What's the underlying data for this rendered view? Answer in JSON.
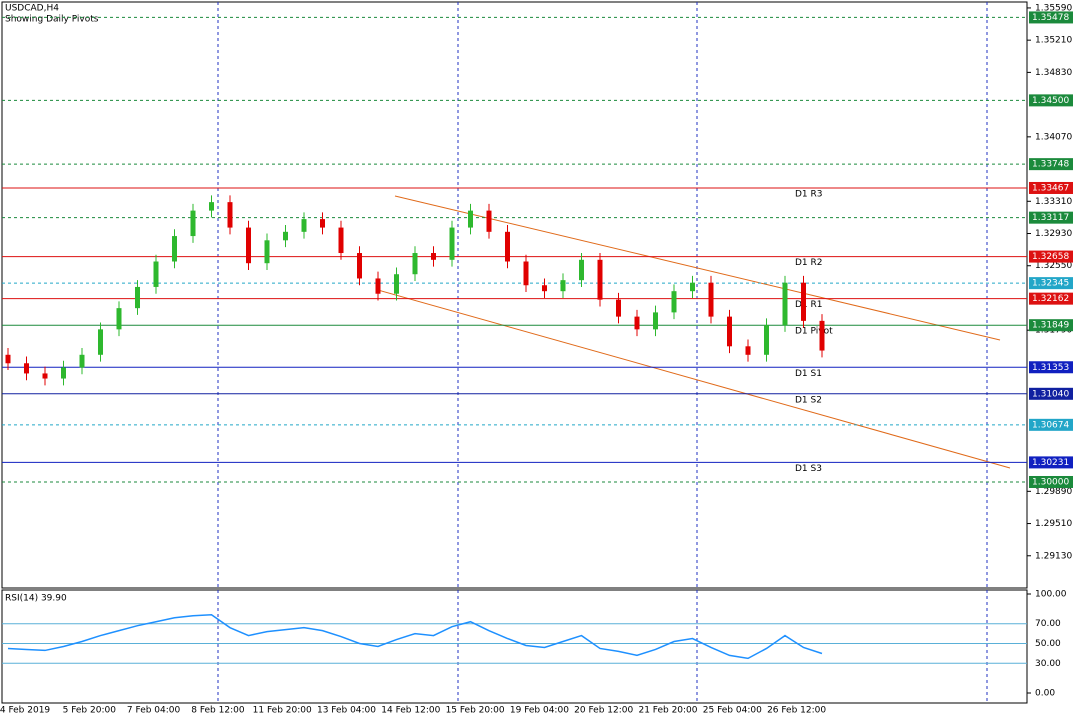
{
  "chart_data": {
    "type": "candlestick",
    "title": "USDCAD,H4",
    "subtitle": "Showing Daily Pivots",
    "up_color": "#2eb82e",
    "down_color": "#e00000",
    "ylim": [
      1.2875,
      1.3566
    ],
    "yticks": [
      {
        "value": 1.3559,
        "label": "1.35590"
      },
      {
        "value": 1.3521,
        "label": "1.35210"
      },
      {
        "value": 1.3483,
        "label": "1.34830"
      },
      {
        "value": 1.3407,
        "label": "1.34070"
      },
      {
        "value": 1.3331,
        "label": "1.33310"
      },
      {
        "value": 1.3293,
        "label": "1.32930"
      },
      {
        "value": 1.3255,
        "label": "1.32550"
      },
      {
        "value": 1.3179,
        "label": "1.31790"
      },
      {
        "value": 1.2989,
        "label": "1.29890"
      },
      {
        "value": 1.2951,
        "label": "1.29510"
      },
      {
        "value": 1.2913,
        "label": "1.29130"
      }
    ],
    "levels": [
      {
        "value": 1.35478,
        "label": "1.35478",
        "color": "#1b8a3c",
        "style": "dashed"
      },
      {
        "value": 1.345,
        "label": "1.34500",
        "color": "#1b8a3c",
        "style": "dashed"
      },
      {
        "value": 1.33748,
        "label": "1.33748",
        "color": "#1b8a3c",
        "style": "dashed"
      },
      {
        "value": 1.33467,
        "label": "1.33467",
        "color": "#dd1111",
        "style": "solid",
        "pivot": "D1 R3"
      },
      {
        "value": 1.33117,
        "label": "1.33117",
        "color": "#1b8a3c",
        "style": "dashed"
      },
      {
        "value": 1.32658,
        "label": "1.32658",
        "color": "#dd1111",
        "style": "solid",
        "pivot": "D1 R2"
      },
      {
        "value": 1.32345,
        "label": "1.32345",
        "color": "#22a6c8",
        "style": "dashed"
      },
      {
        "value": 1.32162,
        "label": "1.32162",
        "color": "#dd1111",
        "style": "solid",
        "pivot": "D1 R1"
      },
      {
        "value": 1.31849,
        "label": "1.31849",
        "color": "#1b8a3c",
        "style": "solid",
        "pivot": "D1 Pivot"
      },
      {
        "value": 1.31353,
        "label": "1.31353",
        "color": "#1020c0",
        "style": "solid",
        "pivot": "D1 S1"
      },
      {
        "value": 1.3104,
        "label": "1.31040",
        "color": "#1020a0",
        "style": "solid",
        "pivot": "D1 S2"
      },
      {
        "value": 1.30674,
        "label": "1.30674",
        "color": "#22a6c8",
        "style": "dashed"
      },
      {
        "value": 1.30231,
        "label": "1.30231",
        "color": "#1020c0",
        "style": "solid",
        "pivot": "D1 S3"
      },
      {
        "value": 1.3,
        "label": "1.30000",
        "color": "#1b8a3c",
        "style": "dashed"
      }
    ],
    "open": [
      1.315,
      1.314,
      1.3128,
      1.3122,
      1.3135,
      1.315,
      1.318,
      1.3205,
      1.323,
      1.326,
      1.329,
      1.332,
      1.333,
      1.33,
      1.3258,
      1.3285,
      1.3295,
      1.331,
      1.33,
      1.327,
      1.324,
      1.3222,
      1.3245,
      1.327,
      1.3262,
      1.33,
      1.332,
      1.3295,
      1.326,
      1.3232,
      1.3225,
      1.3238,
      1.3262,
      1.3215,
      1.3195,
      1.318,
      1.32,
      1.3225,
      1.3235,
      1.3195,
      1.316,
      1.315,
      1.3185,
      1.3235,
      1.319
    ],
    "high": [
      1.3158,
      1.3148,
      1.3136,
      1.3143,
      1.3158,
      1.3188,
      1.3213,
      1.3238,
      1.3268,
      1.3298,
      1.3328,
      1.3338,
      1.3338,
      1.3308,
      1.3293,
      1.3303,
      1.3318,
      1.3318,
      1.3308,
      1.3278,
      1.3248,
      1.3253,
      1.3278,
      1.3278,
      1.3308,
      1.3328,
      1.3328,
      1.3303,
      1.3268,
      1.324,
      1.3246,
      1.327,
      1.327,
      1.3223,
      1.3203,
      1.3208,
      1.3233,
      1.3243,
      1.3243,
      1.3203,
      1.3168,
      1.3193,
      1.3243,
      1.3243,
      1.3198
    ],
    "low": [
      1.3132,
      1.312,
      1.3114,
      1.3114,
      1.3127,
      1.3142,
      1.3172,
      1.3197,
      1.3222,
      1.3252,
      1.3282,
      1.3312,
      1.3292,
      1.325,
      1.325,
      1.3277,
      1.3287,
      1.3292,
      1.3262,
      1.3232,
      1.3214,
      1.3214,
      1.3237,
      1.3254,
      1.3254,
      1.3292,
      1.3287,
      1.3252,
      1.3224,
      1.3217,
      1.3217,
      1.323,
      1.3207,
      1.3187,
      1.3172,
      1.3172,
      1.3192,
      1.3217,
      1.3187,
      1.3152,
      1.3142,
      1.3142,
      1.3177,
      1.3182,
      1.3147
    ],
    "close": [
      1.314,
      1.3128,
      1.3122,
      1.3135,
      1.315,
      1.318,
      1.3205,
      1.323,
      1.326,
      1.329,
      1.332,
      1.333,
      1.33,
      1.3258,
      1.3285,
      1.3295,
      1.331,
      1.33,
      1.327,
      1.324,
      1.3222,
      1.3245,
      1.327,
      1.3262,
      1.33,
      1.332,
      1.3295,
      1.326,
      1.3232,
      1.3225,
      1.3238,
      1.3262,
      1.3215,
      1.3195,
      1.318,
      1.32,
      1.3225,
      1.3235,
      1.3195,
      1.316,
      1.315,
      1.3185,
      1.3235,
      1.319,
      1.3155
    ],
    "dates": [
      "4 Feb 2019",
      "5 Feb 20:00",
      "7 Feb 04:00",
      "8 Feb 12:00",
      "11 Feb 20:00",
      "13 Feb 04:00",
      "14 Feb 12:00",
      "15 Feb 20:00",
      "19 Feb 04:00",
      "20 Feb 12:00",
      "21 Feb 20:00",
      "25 Feb 04:00",
      "26 Feb 12:00"
    ],
    "rsi": {
      "title": "RSI(14) 39.90",
      "color": "#1e90ff",
      "ylim": [
        0,
        100
      ],
      "yticks": [
        {
          "value": 100,
          "label": "100.00"
        },
        {
          "value": 70,
          "label": "70.00"
        },
        {
          "value": 50,
          "label": "50.00"
        },
        {
          "value": 30,
          "label": "30.00"
        },
        {
          "value": 0,
          "label": "0.00"
        }
      ],
      "values": [
        45,
        44,
        43,
        47,
        52,
        58,
        63,
        68,
        72,
        76,
        78,
        79,
        66,
        58,
        62,
        64,
        66,
        63,
        57,
        50,
        47,
        54,
        60,
        58,
        67,
        72,
        63,
        55,
        48,
        46,
        52,
        58,
        45,
        42,
        38,
        44,
        52,
        55,
        46,
        38,
        35,
        45,
        58,
        46,
        39.9
      ]
    }
  }
}
